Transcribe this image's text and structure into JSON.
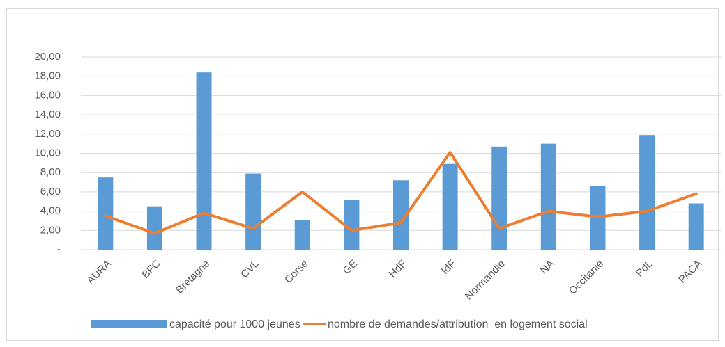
{
  "chart_data": {
    "type": "bar-line",
    "categories": [
      "AURA",
      "BFC",
      "Bretagne",
      "CVL",
      "Corse",
      "GE",
      "HdF",
      "IdF",
      "Normandie",
      "NA",
      "Occitanie",
      "PdL",
      "PACA"
    ],
    "series": [
      {
        "name": "capacité pour 1000 jeunes",
        "type": "bar",
        "color": "#5b9bd5",
        "values": [
          7.5,
          4.5,
          18.4,
          7.9,
          3.1,
          5.2,
          7.2,
          8.9,
          10.7,
          11.0,
          6.6,
          11.9,
          4.8
        ]
      },
      {
        "name": "nombre de demandes/attribution  en logement social",
        "type": "line",
        "color": "#ed7d31",
        "values": [
          3.5,
          1.7,
          3.8,
          2.2,
          6.0,
          2.0,
          2.8,
          10.1,
          2.2,
          4.0,
          3.4,
          4.0,
          5.8
        ]
      }
    ],
    "ylim": [
      0,
      20
    ],
    "yticks": [
      {
        "value": 0,
        "label": "-"
      },
      {
        "value": 2,
        "label": "2,00"
      },
      {
        "value": 4,
        "label": "4,00"
      },
      {
        "value": 6,
        "label": "6,00"
      },
      {
        "value": 8,
        "label": "8,00"
      },
      {
        "value": 10,
        "label": "10,00"
      },
      {
        "value": 12,
        "label": "12,00"
      },
      {
        "value": 14,
        "label": "14,00"
      },
      {
        "value": 16,
        "label": "16,00"
      },
      {
        "value": 18,
        "label": "18,00"
      },
      {
        "value": 20,
        "label": "20,00"
      }
    ],
    "grid": true,
    "legend": "bottom"
  }
}
